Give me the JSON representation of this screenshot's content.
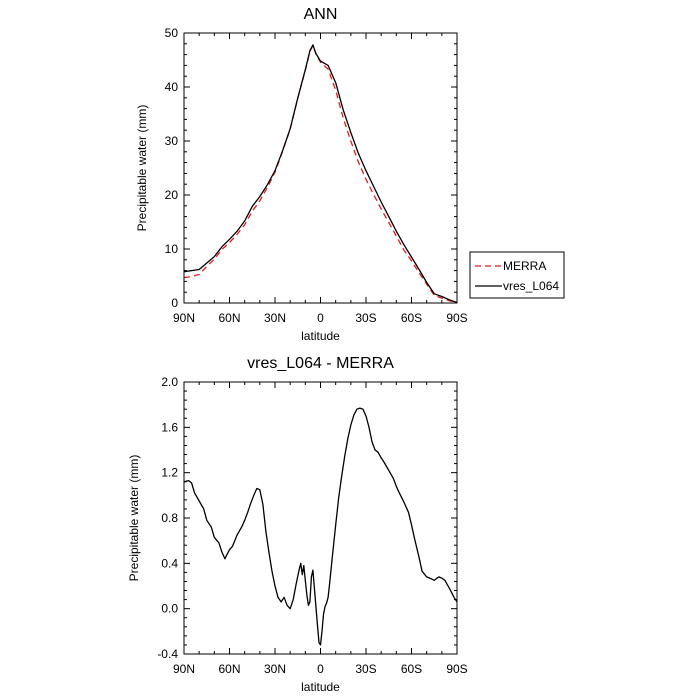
{
  "chart_data": [
    {
      "type": "line",
      "title": "ANN",
      "xlabel": "latitude",
      "ylabel": "Precipitable water (mm)",
      "xlim": [
        90,
        -90
      ],
      "ylim": [
        0,
        50
      ],
      "xticks": [
        90,
        60,
        30,
        0,
        -30,
        -60,
        -90
      ],
      "xtick_labels": [
        "90N",
        "60N",
        "30N",
        "0",
        "30S",
        "60S",
        "90S"
      ],
      "yticks": [
        0,
        10,
        20,
        30,
        40,
        50
      ],
      "ytick_labels": [
        "0",
        "10",
        "20",
        "30",
        "40",
        "50"
      ],
      "legend": "right",
      "series": [
        {
          "name": "MERRA",
          "color": "#e8191f",
          "style": "dashed",
          "x": [
            90,
            85,
            80,
            75,
            70,
            65,
            60,
            55,
            50,
            45,
            40,
            35,
            30,
            25,
            20,
            15,
            10,
            7,
            5,
            3,
            0,
            -5,
            -10,
            -15,
            -20,
            -25,
            -30,
            -35,
            -40,
            -45,
            -50,
            -55,
            -60,
            -65,
            -70,
            -75,
            -80,
            -85,
            -90
          ],
          "y": [
            4.7,
            4.9,
            5.3,
            6.8,
            8.1,
            9.9,
            11.2,
            12.7,
            14.5,
            17.0,
            18.9,
            21.4,
            24.2,
            28.1,
            32.2,
            37.9,
            43.1,
            46.6,
            47.7,
            46.1,
            44.6,
            43.3,
            39.4,
            34.2,
            30.0,
            26.1,
            22.9,
            20.1,
            17.4,
            14.9,
            12.4,
            9.8,
            7.8,
            5.6,
            3.5,
            1.4,
            0.9,
            0.4,
            0.1
          ]
        },
        {
          "name": "vres_L064",
          "color": "#000000",
          "style": "solid",
          "x": [
            90,
            85,
            80,
            75,
            70,
            65,
            60,
            55,
            50,
            45,
            40,
            35,
            30,
            25,
            20,
            15,
            10,
            7,
            5,
            3,
            0,
            -5,
            -10,
            -15,
            -20,
            -25,
            -30,
            -35,
            -40,
            -45,
            -50,
            -55,
            -60,
            -65,
            -70,
            -75,
            -80,
            -85,
            -90
          ],
          "y": [
            5.8,
            6.0,
            6.2,
            7.4,
            8.6,
            10.4,
            11.8,
            13.3,
            15.2,
            17.9,
            19.7,
            21.9,
            24.5,
            28.2,
            32.3,
            38.0,
            43.2,
            46.7,
            47.8,
            46.2,
            44.8,
            44.0,
            40.8,
            35.7,
            31.6,
            27.7,
            24.5,
            21.6,
            18.7,
            16.0,
            13.3,
            10.8,
            8.5,
            6.2,
            3.8,
            1.7,
            1.2,
            0.6,
            0.1
          ]
        }
      ]
    },
    {
      "type": "line",
      "title": "vres_L064 - MERRA",
      "xlabel": "latitude",
      "ylabel": "Precipitable water (mm)",
      "xlim": [
        90,
        -90
      ],
      "ylim": [
        -0.4,
        2.0
      ],
      "xticks": [
        90,
        60,
        30,
        0,
        -30,
        -60,
        -90
      ],
      "xtick_labels": [
        "90N",
        "60N",
        "30N",
        "0",
        "30S",
        "60S",
        "90S"
      ],
      "yticks": [
        -0.4,
        0,
        0.4,
        0.8,
        1.2,
        1.6,
        2.0
      ],
      "ytick_labels": [
        "-0.4",
        "0.0",
        "0.4",
        "0.8",
        "1.2",
        "1.6",
        "2.0"
      ],
      "series": [
        {
          "name": "vres_L064 - MERRA",
          "color": "#000000",
          "style": "solid",
          "x": [
            90,
            87,
            85,
            83,
            80,
            77,
            75,
            72,
            70,
            67,
            65,
            63,
            62,
            60,
            58,
            55,
            52,
            50,
            48,
            46,
            44,
            42,
            40,
            38,
            36,
            34,
            32,
            30,
            28,
            26,
            24,
            22,
            20,
            18,
            16,
            14,
            13,
            12,
            11,
            10,
            9,
            8,
            7,
            6,
            5,
            4,
            3,
            2,
            1,
            0,
            -1,
            -2,
            -3,
            -4,
            -5,
            -6,
            -7,
            -8,
            -10,
            -12,
            -14,
            -16,
            -18,
            -20,
            -22,
            -24,
            -26,
            -28,
            -30,
            -32,
            -34,
            -36,
            -38,
            -40,
            -42,
            -45,
            -48,
            -50,
            -52,
            -55,
            -58,
            -60,
            -62,
            -65,
            -67,
            -70,
            -72,
            -75,
            -78,
            -80,
            -82,
            -85,
            -88,
            -90
          ],
          "y": [
            1.12,
            1.13,
            1.11,
            1.02,
            0.95,
            0.88,
            0.78,
            0.72,
            0.63,
            0.58,
            0.5,
            0.44,
            0.47,
            0.52,
            0.55,
            0.65,
            0.72,
            0.78,
            0.85,
            0.93,
            1.0,
            1.06,
            1.05,
            0.92,
            0.68,
            0.5,
            0.33,
            0.2,
            0.1,
            0.06,
            0.1,
            0.03,
            0.0,
            0.08,
            0.22,
            0.35,
            0.4,
            0.3,
            0.38,
            0.25,
            0.12,
            0.03,
            0.06,
            0.28,
            0.34,
            0.18,
            0.02,
            -0.15,
            -0.3,
            -0.32,
            -0.2,
            -0.05,
            0.02,
            0.05,
            0.1,
            0.22,
            0.35,
            0.48,
            0.74,
            0.98,
            1.17,
            1.35,
            1.5,
            1.62,
            1.71,
            1.76,
            1.77,
            1.76,
            1.7,
            1.6,
            1.47,
            1.4,
            1.38,
            1.33,
            1.29,
            1.22,
            1.15,
            1.08,
            1.02,
            0.94,
            0.85,
            0.74,
            0.62,
            0.45,
            0.33,
            0.28,
            0.27,
            0.25,
            0.28,
            0.27,
            0.25,
            0.18,
            0.1,
            0.06
          ]
        }
      ]
    }
  ],
  "legend": {
    "items": [
      {
        "label": "MERRA"
      },
      {
        "label": "vres_L064"
      }
    ]
  }
}
